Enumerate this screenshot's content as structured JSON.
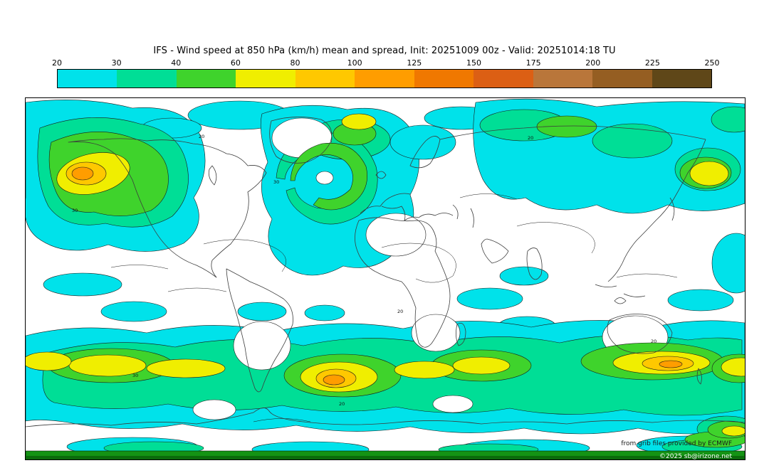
{
  "title": "IFS - Wind speed at 850 hPa (km/h) mean and spread, Init: 20251009 00z - Valid: 20251014:18 TU",
  "colorbar": {
    "ticks": [
      "20",
      "30",
      "40",
      "60",
      "80",
      "100",
      "125",
      "150",
      "175",
      "200",
      "225",
      "250"
    ]
  },
  "palette": {
    "band_colors": [
      "#00E2EA",
      "#00DE96",
      "#3FD32C",
      "#F0EE00",
      "#FFC800",
      "#FF9D00",
      "#F07800",
      "#DC5F14",
      "#B9763A",
      "#955E22",
      "#5F4718"
    ]
  },
  "map": {
    "contour_label_20": "20",
    "contour_label_30": "30",
    "attribution_source": "from grib files provided by ECMWF",
    "attribution_copyright": "©2025 sb@irizone.net",
    "bottom_band_color": "#149314",
    "contour_color": "#1a1a1a",
    "coast_color": "#3c3c3c"
  },
  "chart_data": {
    "type": "heatmap",
    "title": "IFS - Wind speed at 850 hPa (km/h) mean and spread",
    "init": "20251009 00z",
    "valid": "20251014:18 TU",
    "units": "km/h",
    "legend_ticks": [
      20,
      30,
      40,
      60,
      80,
      100,
      125,
      150,
      175,
      200,
      225,
      250
    ],
    "projection": "equirectangular world map, lon -180..180, lat 90..-90",
    "legend_position": "top"
  }
}
